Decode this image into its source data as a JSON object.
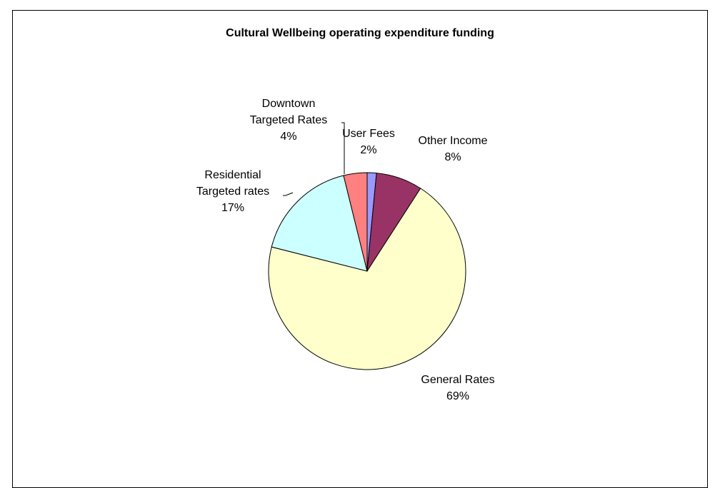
{
  "chart_data": {
    "type": "pie",
    "title": "Cultural Wellbeing operating expenditure funding",
    "slices": [
      {
        "label": "User Fees",
        "line1": "User Fees",
        "line2": "",
        "percent_label": "2%",
        "value": 1.5,
        "color": "#9999FF"
      },
      {
        "label": "Other Income",
        "line1": "Other Income",
        "line2": "",
        "percent_label": "8%",
        "value": 7.5,
        "color": "#993366"
      },
      {
        "label": "General Rates",
        "line1": "General Rates",
        "line2": "",
        "percent_label": "69%",
        "value": 69.0,
        "color": "#FFFFCC"
      },
      {
        "label": "Residential Targeted rates",
        "line1": "Residential",
        "line2": "Targeted rates",
        "percent_label": "17%",
        "value": 17.0,
        "color": "#CCFFFF"
      },
      {
        "label": "Downtown Targeted Rates",
        "line1": "Downtown",
        "line2": "Targeted Rates",
        "percent_label": "4%",
        "value": 3.8,
        "color": "#FF8080"
      }
    ]
  }
}
